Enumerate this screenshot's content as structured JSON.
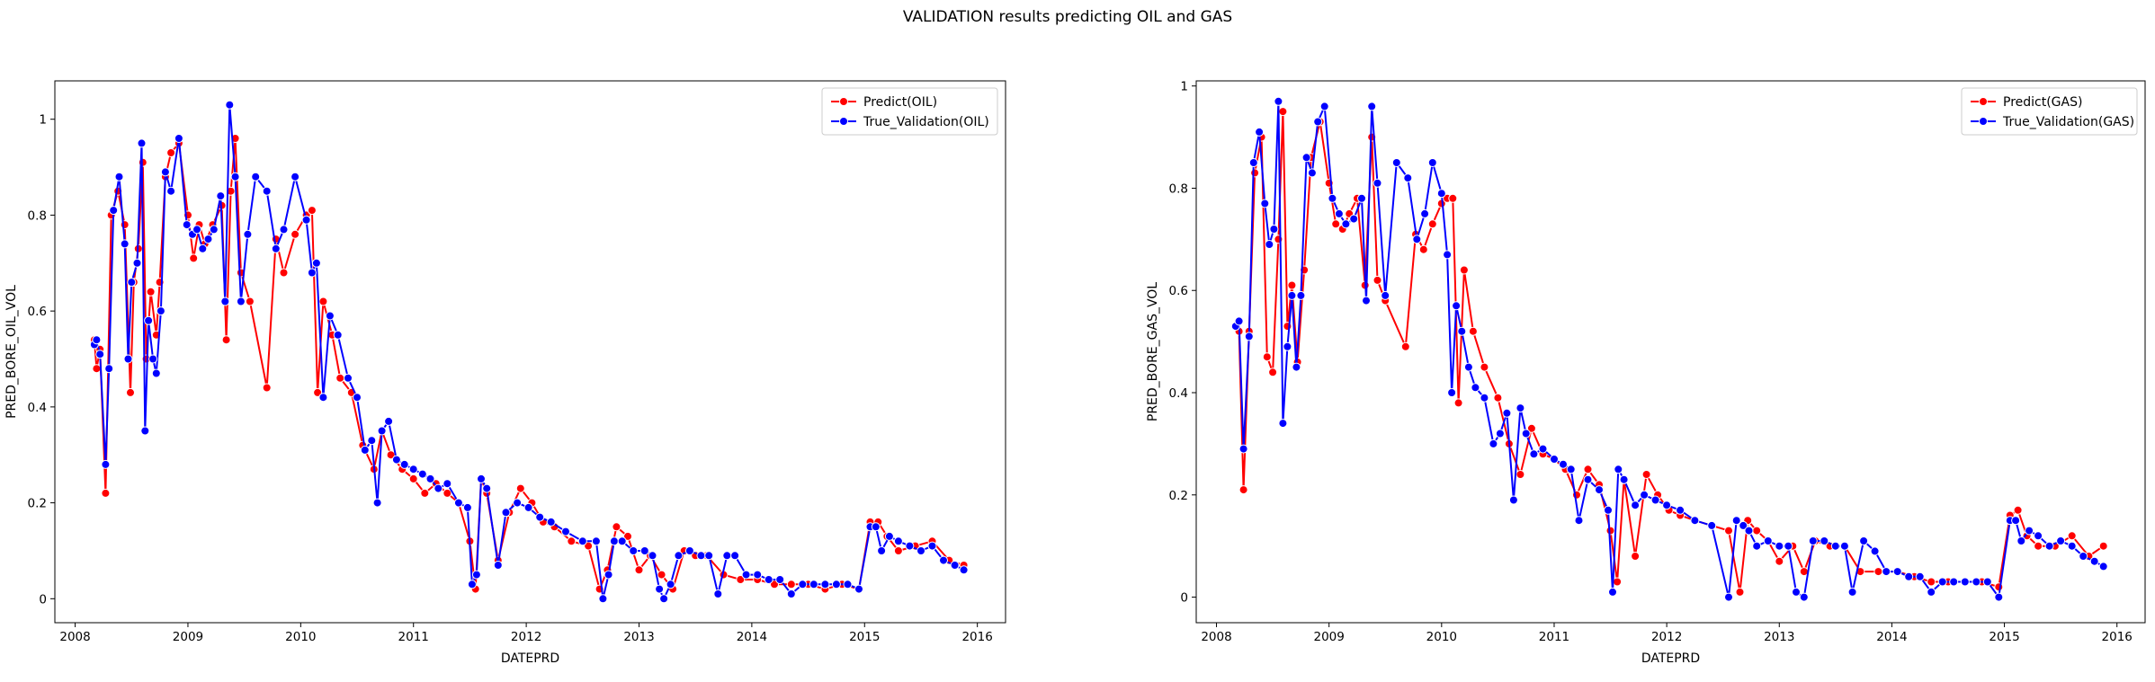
{
  "figure": {
    "title": "VALIDATION results predicting OIL and GAS"
  },
  "colors": {
    "predict": "#ff0000",
    "true_validation": "#0000ff",
    "marker_edge": "#ffffff",
    "axes": "#000000"
  },
  "chart_data": [
    {
      "type": "line",
      "xlabel": "DATEPRD",
      "ylabel": "PRED_BORE_OIL_VOL",
      "xlim": [
        2007.82,
        2016.25
      ],
      "ylim": [
        -0.05,
        1.08
      ],
      "xticks": [
        2008,
        2009,
        2010,
        2011,
        2012,
        2013,
        2014,
        2015,
        2016
      ],
      "yticks": [
        0.0,
        0.2,
        0.4,
        0.6,
        0.8,
        1.0
      ],
      "legend": "upper-right",
      "grid": false,
      "series": [
        {
          "name": "Predict(OIL)",
          "color": "#ff0000",
          "x": [
            2008.17,
            2008.19,
            2008.22,
            2008.27,
            2008.32,
            2008.38,
            2008.44,
            2008.49,
            2008.52,
            2008.56,
            2008.6,
            2008.63,
            2008.67,
            2008.72,
            2008.75,
            2008.8,
            2008.85,
            2008.92,
            2009.0,
            2009.05,
            2009.1,
            2009.15,
            2009.22,
            2009.3,
            2009.34,
            2009.38,
            2009.42,
            2009.47,
            2009.55,
            2009.7,
            2009.78,
            2009.85,
            2009.95,
            2010.05,
            2010.1,
            2010.15,
            2010.2,
            2010.28,
            2010.35,
            2010.45,
            2010.55,
            2010.65,
            2010.72,
            2010.8,
            2010.9,
            2011.0,
            2011.1,
            2011.2,
            2011.3,
            2011.4,
            2011.5,
            2011.55,
            2011.6,
            2011.65,
            2011.75,
            2011.85,
            2011.95,
            2012.05,
            2012.15,
            2012.25,
            2012.4,
            2012.55,
            2012.65,
            2012.72,
            2012.8,
            2012.9,
            2013.0,
            2013.1,
            2013.2,
            2013.3,
            2013.4,
            2013.5,
            2013.6,
            2013.75,
            2013.9,
            2014.05,
            2014.2,
            2014.35,
            2014.5,
            2014.65,
            2014.8,
            2014.95,
            2015.05,
            2015.12,
            2015.2,
            2015.3,
            2015.45,
            2015.6,
            2015.75,
            2015.88
          ],
          "y": [
            0.54,
            0.48,
            0.52,
            0.22,
            0.8,
            0.85,
            0.78,
            0.43,
            0.66,
            0.73,
            0.91,
            0.5,
            0.64,
            0.55,
            0.66,
            0.88,
            0.93,
            0.95,
            0.8,
            0.71,
            0.78,
            0.74,
            0.78,
            0.82,
            0.54,
            0.85,
            0.96,
            0.68,
            0.62,
            0.44,
            0.75,
            0.68,
            0.76,
            0.8,
            0.81,
            0.43,
            0.62,
            0.55,
            0.46,
            0.43,
            0.32,
            0.27,
            0.35,
            0.3,
            0.27,
            0.25,
            0.22,
            0.24,
            0.22,
            0.2,
            0.12,
            0.02,
            0.25,
            0.22,
            0.08,
            0.18,
            0.23,
            0.2,
            0.16,
            0.15,
            0.12,
            0.11,
            0.02,
            0.06,
            0.15,
            0.13,
            0.06,
            0.09,
            0.05,
            0.02,
            0.1,
            0.09,
            0.09,
            0.05,
            0.04,
            0.04,
            0.03,
            0.03,
            0.03,
            0.02,
            0.03,
            0.02,
            0.16,
            0.16,
            0.13,
            0.1,
            0.11,
            0.12,
            0.08,
            0.07
          ]
        },
        {
          "name": "True_Validation(OIL)",
          "color": "#0000ff",
          "x": [
            2008.17,
            2008.19,
            2008.22,
            2008.27,
            2008.3,
            2008.34,
            2008.39,
            2008.44,
            2008.47,
            2008.5,
            2008.55,
            2008.59,
            2008.62,
            2008.65,
            2008.69,
            2008.72,
            2008.76,
            2008.8,
            2008.85,
            2008.92,
            2008.99,
            2009.04,
            2009.08,
            2009.13,
            2009.18,
            2009.23,
            2009.29,
            2009.33,
            2009.37,
            2009.42,
            2009.47,
            2009.53,
            2009.6,
            2009.7,
            2009.78,
            2009.85,
            2009.95,
            2010.05,
            2010.1,
            2010.14,
            2010.2,
            2010.26,
            2010.33,
            2010.42,
            2010.5,
            2010.57,
            2010.63,
            2010.68,
            2010.72,
            2010.78,
            2010.85,
            2010.92,
            2011.0,
            2011.08,
            2011.15,
            2011.22,
            2011.3,
            2011.4,
            2011.48,
            2011.52,
            2011.56,
            2011.6,
            2011.65,
            2011.75,
            2011.82,
            2011.92,
            2012.02,
            2012.12,
            2012.22,
            2012.35,
            2012.5,
            2012.62,
            2012.68,
            2012.73,
            2012.78,
            2012.85,
            2012.95,
            2013.05,
            2013.12,
            2013.18,
            2013.22,
            2013.28,
            2013.35,
            2013.45,
            2013.55,
            2013.62,
            2013.7,
            2013.78,
            2013.85,
            2013.95,
            2014.05,
            2014.15,
            2014.25,
            2014.35,
            2014.45,
            2014.55,
            2014.65,
            2014.75,
            2014.85,
            2014.95,
            2015.05,
            2015.1,
            2015.15,
            2015.22,
            2015.3,
            2015.4,
            2015.5,
            2015.6,
            2015.7,
            2015.8,
            2015.88
          ],
          "y": [
            0.53,
            0.54,
            0.51,
            0.28,
            0.48,
            0.81,
            0.88,
            0.74,
            0.5,
            0.66,
            0.7,
            0.95,
            0.35,
            0.58,
            0.5,
            0.47,
            0.6,
            0.89,
            0.85,
            0.96,
            0.78,
            0.76,
            0.77,
            0.73,
            0.75,
            0.77,
            0.84,
            0.62,
            1.03,
            0.88,
            0.62,
            0.76,
            0.88,
            0.85,
            0.73,
            0.77,
            0.88,
            0.79,
            0.68,
            0.7,
            0.42,
            0.59,
            0.55,
            0.46,
            0.42,
            0.31,
            0.33,
            0.2,
            0.35,
            0.37,
            0.29,
            0.28,
            0.27,
            0.26,
            0.25,
            0.23,
            0.24,
            0.2,
            0.19,
            0.03,
            0.05,
            0.25,
            0.23,
            0.07,
            0.18,
            0.2,
            0.19,
            0.17,
            0.16,
            0.14,
            0.12,
            0.12,
            0.0,
            0.05,
            0.12,
            0.12,
            0.1,
            0.1,
            0.09,
            0.02,
            0.0,
            0.03,
            0.09,
            0.1,
            0.09,
            0.09,
            0.01,
            0.09,
            0.09,
            0.05,
            0.05,
            0.04,
            0.04,
            0.01,
            0.03,
            0.03,
            0.03,
            0.03,
            0.03,
            0.02,
            0.15,
            0.15,
            0.1,
            0.13,
            0.12,
            0.11,
            0.1,
            0.11,
            0.08,
            0.07,
            0.06
          ]
        }
      ]
    },
    {
      "type": "line",
      "xlabel": "DATEPRD",
      "ylabel": "PRED_BORE_GAS_VOL",
      "xlim": [
        2007.82,
        2016.25
      ],
      "ylim": [
        -0.05,
        1.01
      ],
      "xticks": [
        2008,
        2009,
        2010,
        2011,
        2012,
        2013,
        2014,
        2015,
        2016
      ],
      "yticks": [
        0.0,
        0.2,
        0.4,
        0.6,
        0.8,
        1.0
      ],
      "legend": "upper-right",
      "grid": false,
      "series": [
        {
          "name": "Predict(GAS)",
          "color": "#ff0000",
          "x": [
            2008.17,
            2008.2,
            2008.24,
            2008.29,
            2008.34,
            2008.4,
            2008.45,
            2008.5,
            2008.55,
            2008.59,
            2008.63,
            2008.67,
            2008.72,
            2008.78,
            2008.84,
            2008.92,
            2009.0,
            2009.06,
            2009.12,
            2009.18,
            2009.25,
            2009.32,
            2009.38,
            2009.43,
            2009.5,
            2009.68,
            2009.77,
            2009.84,
            2009.92,
            2010.0,
            2010.05,
            2010.1,
            2010.15,
            2010.2,
            2010.28,
            2010.38,
            2010.5,
            2010.6,
            2010.7,
            2010.8,
            2010.9,
            2011.0,
            2011.1,
            2011.2,
            2011.3,
            2011.4,
            2011.5,
            2011.56,
            2011.62,
            2011.72,
            2011.82,
            2011.92,
            2012.02,
            2012.12,
            2012.25,
            2012.4,
            2012.55,
            2012.65,
            2012.72,
            2012.8,
            2012.9,
            2013.0,
            2013.12,
            2013.22,
            2013.32,
            2013.45,
            2013.58,
            2013.72,
            2013.88,
            2014.05,
            2014.2,
            2014.35,
            2014.5,
            2014.65,
            2014.8,
            2014.95,
            2015.05,
            2015.12,
            2015.2,
            2015.3,
            2015.45,
            2015.6,
            2015.75,
            2015.88
          ],
          "y": [
            0.53,
            0.52,
            0.21,
            0.52,
            0.83,
            0.9,
            0.47,
            0.44,
            0.7,
            0.95,
            0.53,
            0.61,
            0.46,
            0.64,
            0.86,
            0.93,
            0.81,
            0.73,
            0.72,
            0.75,
            0.78,
            0.61,
            0.9,
            0.62,
            0.58,
            0.49,
            0.71,
            0.68,
            0.73,
            0.77,
            0.78,
            0.78,
            0.38,
            0.64,
            0.52,
            0.45,
            0.39,
            0.3,
            0.24,
            0.33,
            0.28,
            0.27,
            0.25,
            0.2,
            0.25,
            0.22,
            0.13,
            0.03,
            0.23,
            0.08,
            0.24,
            0.2,
            0.17,
            0.16,
            0.15,
            0.14,
            0.13,
            0.01,
            0.15,
            0.13,
            0.11,
            0.07,
            0.1,
            0.05,
            0.11,
            0.1,
            0.1,
            0.05,
            0.05,
            0.05,
            0.04,
            0.03,
            0.03,
            0.03,
            0.03,
            0.02,
            0.16,
            0.17,
            0.12,
            0.1,
            0.1,
            0.12,
            0.08,
            0.1
          ]
        },
        {
          "name": "True_Validation(GAS)",
          "color": "#0000ff",
          "x": [
            2008.17,
            2008.2,
            2008.24,
            2008.29,
            2008.33,
            2008.38,
            2008.43,
            2008.47,
            2008.51,
            2008.55,
            2008.59,
            2008.63,
            2008.67,
            2008.71,
            2008.75,
            2008.8,
            2008.85,
            2008.9,
            2008.96,
            2009.03,
            2009.09,
            2009.15,
            2009.22,
            2009.29,
            2009.33,
            2009.38,
            2009.43,
            2009.5,
            2009.6,
            2009.7,
            2009.78,
            2009.85,
            2009.92,
            2010.0,
            2010.05,
            2010.09,
            2010.13,
            2010.18,
            2010.24,
            2010.3,
            2010.38,
            2010.46,
            2010.52,
            2010.58,
            2010.64,
            2010.7,
            2010.75,
            2010.82,
            2010.9,
            2011.0,
            2011.08,
            2011.15,
            2011.22,
            2011.3,
            2011.4,
            2011.48,
            2011.52,
            2011.57,
            2011.62,
            2011.72,
            2011.8,
            2011.9,
            2012.0,
            2012.12,
            2012.25,
            2012.4,
            2012.55,
            2012.62,
            2012.68,
            2012.73,
            2012.8,
            2012.9,
            2013.0,
            2013.08,
            2013.15,
            2013.22,
            2013.3,
            2013.4,
            2013.5,
            2013.58,
            2013.65,
            2013.75,
            2013.85,
            2013.95,
            2014.05,
            2014.15,
            2014.25,
            2014.35,
            2014.45,
            2014.55,
            2014.65,
            2014.75,
            2014.85,
            2014.95,
            2015.05,
            2015.1,
            2015.15,
            2015.22,
            2015.3,
            2015.4,
            2015.5,
            2015.6,
            2015.7,
            2015.8,
            2015.88
          ],
          "y": [
            0.53,
            0.54,
            0.29,
            0.51,
            0.85,
            0.91,
            0.77,
            0.69,
            0.72,
            0.97,
            0.34,
            0.49,
            0.59,
            0.45,
            0.59,
            0.86,
            0.83,
            0.93,
            0.96,
            0.78,
            0.75,
            0.73,
            0.74,
            0.78,
            0.58,
            0.96,
            0.81,
            0.59,
            0.85,
            0.82,
            0.7,
            0.75,
            0.85,
            0.79,
            0.67,
            0.4,
            0.57,
            0.52,
            0.45,
            0.41,
            0.39,
            0.3,
            0.32,
            0.36,
            0.19,
            0.37,
            0.32,
            0.28,
            0.29,
            0.27,
            0.26,
            0.25,
            0.15,
            0.23,
            0.21,
            0.17,
            0.01,
            0.25,
            0.23,
            0.18,
            0.2,
            0.19,
            0.18,
            0.17,
            0.15,
            0.14,
            0.0,
            0.15,
            0.14,
            0.13,
            0.1,
            0.11,
            0.1,
            0.1,
            0.01,
            0.0,
            0.11,
            0.11,
            0.1,
            0.1,
            0.01,
            0.11,
            0.09,
            0.05,
            0.05,
            0.04,
            0.04,
            0.01,
            0.03,
            0.03,
            0.03,
            0.03,
            0.03,
            0.0,
            0.15,
            0.15,
            0.11,
            0.13,
            0.12,
            0.1,
            0.11,
            0.1,
            0.08,
            0.07,
            0.06
          ]
        }
      ]
    }
  ]
}
